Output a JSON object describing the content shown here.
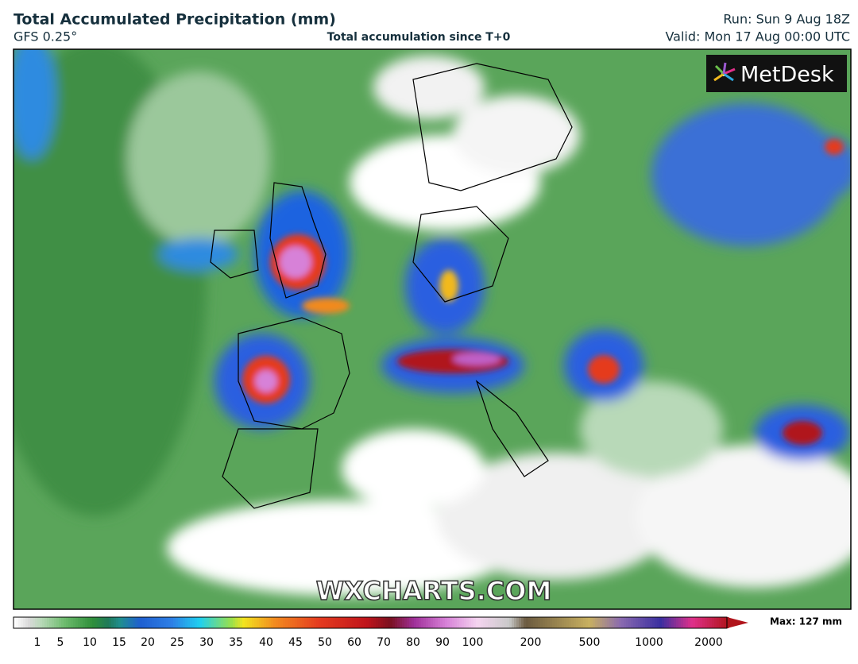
{
  "header": {
    "title": "Total Accumulated Precipitation (mm)",
    "model": "GFS 0.25°",
    "subtitle": "Total accumulation since T+0",
    "run": "Run: Sun 9 Aug 18Z",
    "valid": "Valid: Mon 17 Aug 00:00 UTC"
  },
  "logo": "MetDesk",
  "watermark": "WXCHARTS.COM",
  "legend": {
    "ticks": [
      "1",
      "5",
      "10",
      "15",
      "20",
      "25",
      "30",
      "35",
      "40",
      "45",
      "50",
      "60",
      "70",
      "80",
      "90",
      "100",
      "200",
      "500",
      "1000",
      "2000"
    ],
    "max_label": "Max: 127 mm"
  }
}
